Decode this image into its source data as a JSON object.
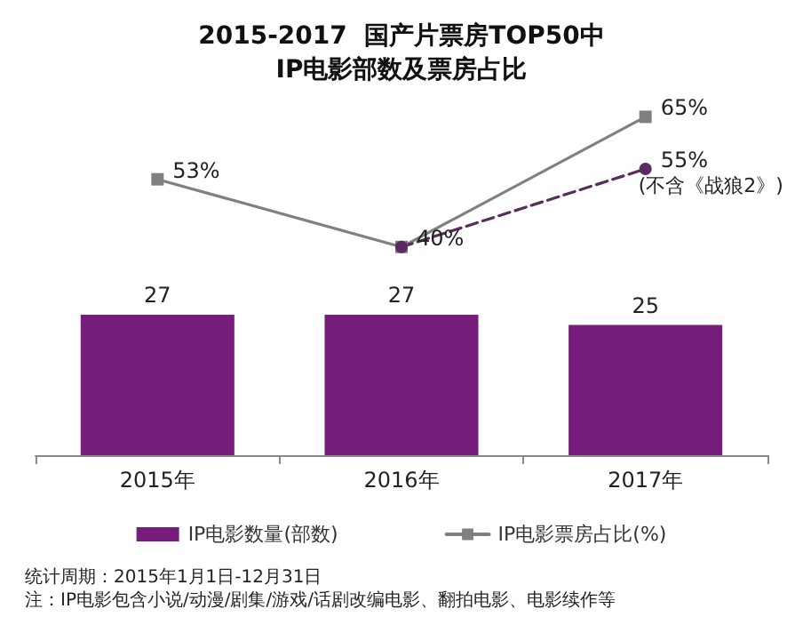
{
  "chart_data": {
    "type": "bar",
    "title": "2015-2017  国产片票房TOP50中\nIP电影部数及票房占比",
    "categories": [
      "2015年",
      "2016年",
      "2017年"
    ],
    "series": [
      {
        "name": "IP电影数量(部数)",
        "color": "#761d7c",
        "values": [
          27,
          27,
          25
        ],
        "value_labels": [
          "27",
          "27",
          "25"
        ]
      },
      {
        "name": "IP电影票房占比(%)",
        "type": "line",
        "color": "#808080",
        "marker": "square",
        "line_style": "solid",
        "values": [
          53,
          40,
          65
        ],
        "value_labels": [
          "53%",
          "40%",
          "65%"
        ]
      },
      {
        "type": "line",
        "color": "#5c2a60",
        "marker": "circle",
        "line_style": "dashed",
        "values": [
          null,
          40,
          55
        ],
        "value_labels": [
          null,
          null,
          "55%"
        ]
      }
    ],
    "annotations": [
      {
        "text": "(不含《战狼2》)",
        "x": "2017年",
        "y": 55
      },
      "统计周期：2015年1月1日-12月31日",
      "注：IP电影包含小说/动漫/剧集/游戏/话剧改编电影、翻拍电影、电影续作等"
    ],
    "legend": "bottom",
    "grid": false
  }
}
